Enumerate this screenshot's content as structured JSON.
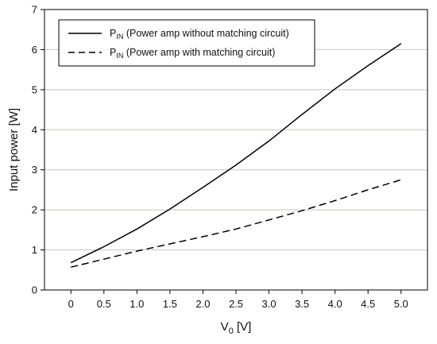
{
  "chart_data": {
    "type": "line",
    "xlabel": "V",
    "xlabel_sub": "0",
    "xlabel_unit": "[V]",
    "ylabel": "Input power [W]",
    "xlim": [
      -0.4,
      5.4
    ],
    "ylim": [
      0,
      7
    ],
    "x_ticks": [
      "0",
      "0.5",
      "1.0",
      "1.5",
      "2.0",
      "2.5",
      "3.0",
      "3.5",
      "4.0",
      "4.5",
      "5.0"
    ],
    "y_ticks": [
      "0",
      "1",
      "2",
      "3",
      "4",
      "5",
      "6",
      "7"
    ],
    "grid": "horizontal",
    "legend_placement": "top-left",
    "series": [
      {
        "name_main": "P",
        "name_sub": "IN",
        "name_rest": " (Power amp without matching circuit)",
        "style": "solid",
        "color": "#000000",
        "x": [
          0,
          0.5,
          1.0,
          1.5,
          2.0,
          2.5,
          3.0,
          3.5,
          4.0,
          4.5,
          5.0
        ],
        "y": [
          0.68,
          1.08,
          1.52,
          2.02,
          2.56,
          3.12,
          3.72,
          4.38,
          5.02,
          5.6,
          6.15
        ]
      },
      {
        "name_main": "P",
        "name_sub": "IN",
        "name_rest": " (Power amp with matching circuit)",
        "style": "dashed",
        "color": "#000000",
        "x": [
          0,
          0.5,
          1.0,
          1.5,
          2.0,
          2.5,
          3.0,
          3.5,
          4.0,
          4.5,
          5.0
        ],
        "y": [
          0.57,
          0.77,
          0.97,
          1.15,
          1.33,
          1.52,
          1.75,
          1.98,
          2.23,
          2.5,
          2.75
        ]
      }
    ]
  }
}
